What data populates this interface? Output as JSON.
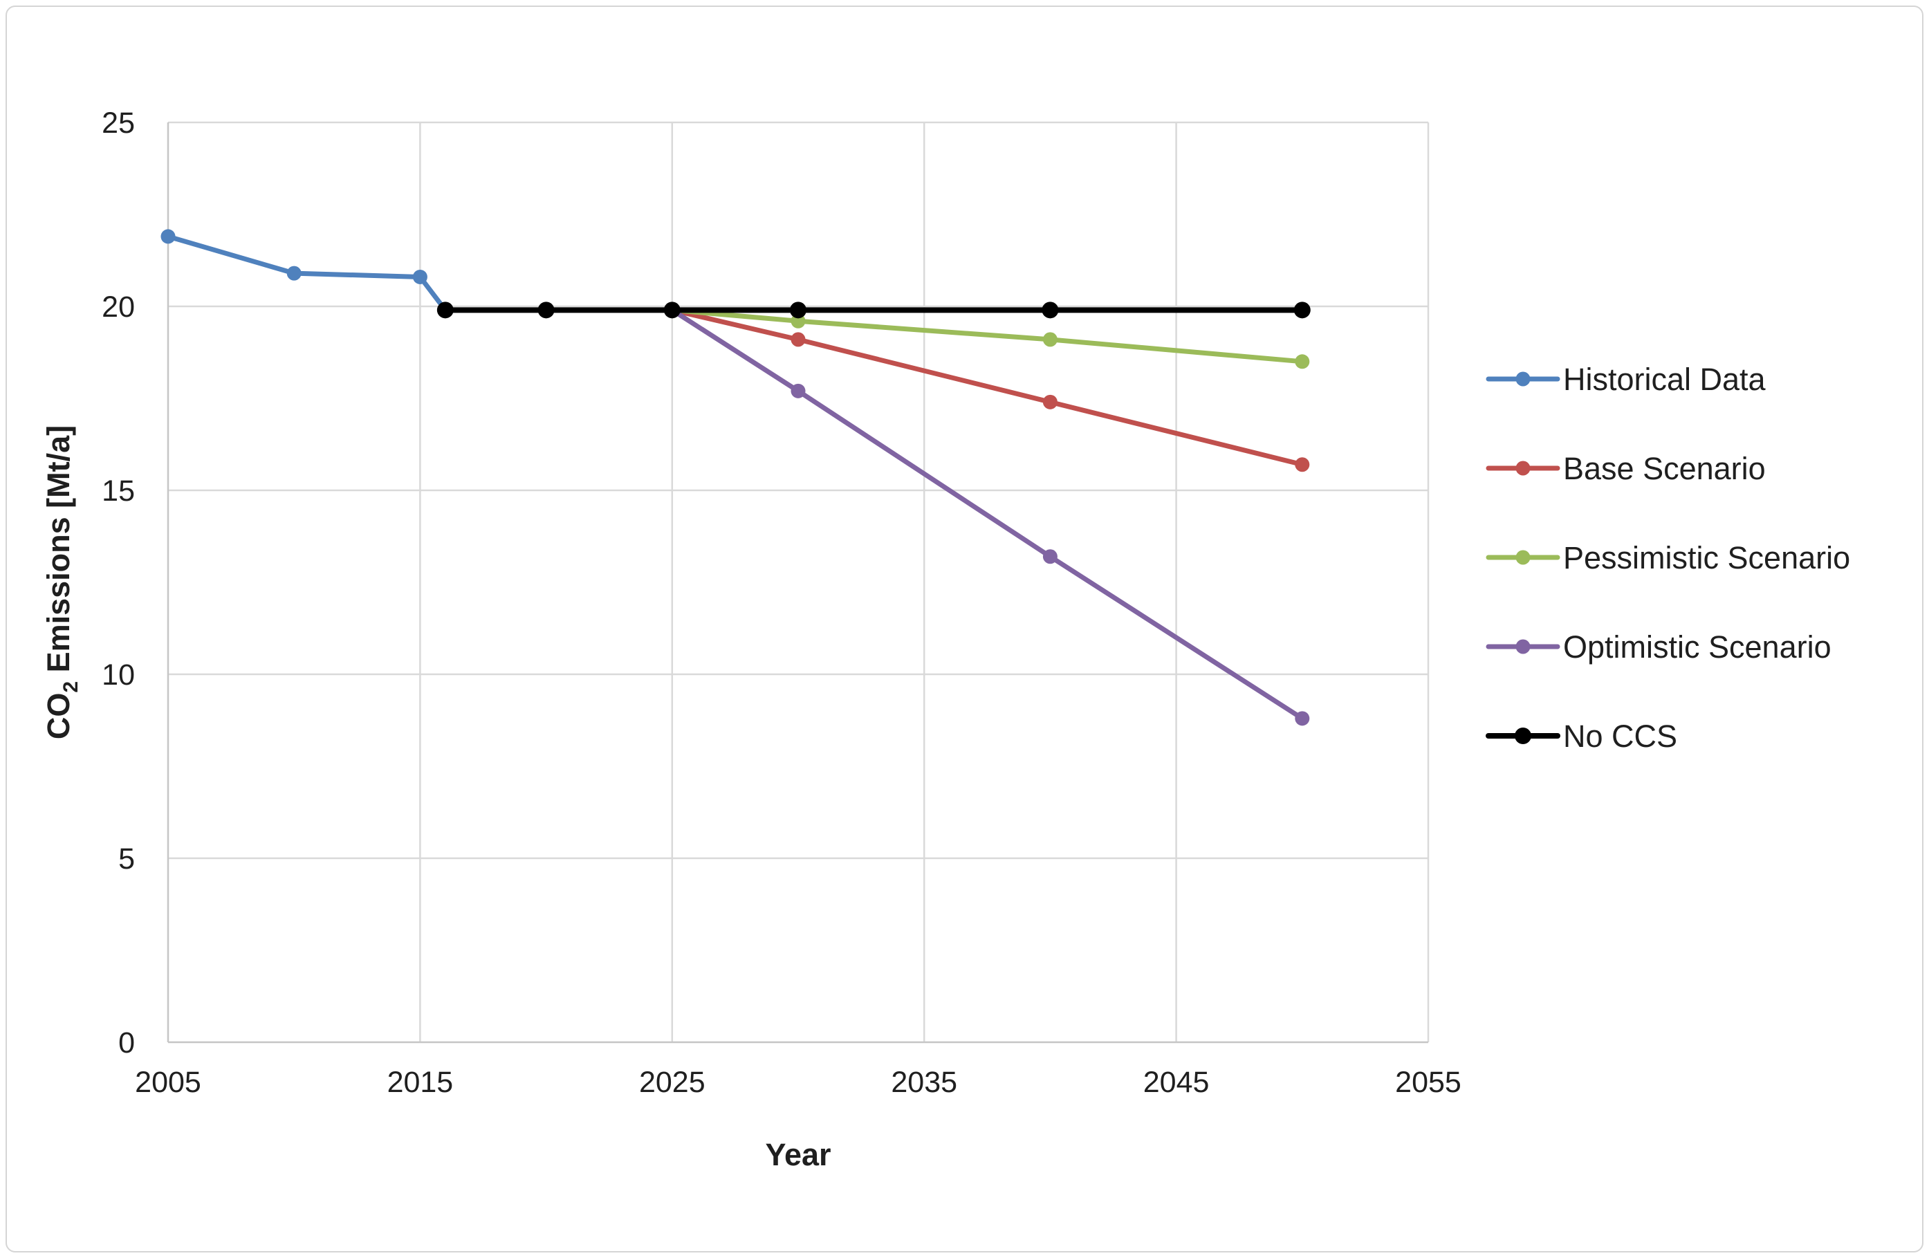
{
  "frame": {
    "background_color": "#ffffff",
    "border_color": "#d5d5d5"
  },
  "chart_data": {
    "type": "line",
    "title": "",
    "xlabel": "Year",
    "ylabel": "CO2 Emissions [Mt/a]",
    "ylabel_rich": {
      "prefix": "CO",
      "subscript": "2",
      "suffix": " Emissions [Mt/a]"
    },
    "xlim": [
      2005,
      2055
    ],
    "ylim": [
      0,
      25
    ],
    "xticks": [
      2005,
      2015,
      2025,
      2035,
      2045,
      2055
    ],
    "yticks": [
      0,
      5,
      10,
      15,
      20,
      25
    ],
    "grid": true,
    "gridline_color": "#d9d9d9",
    "axis_line_color": "#c6c6c6",
    "legend_position": "right",
    "series": [
      {
        "name": "Historical Data",
        "color": "#4F81BD",
        "line_width": 7,
        "marker_radius": 10.5,
        "points": [
          [
            2005,
            21.9
          ],
          [
            2010,
            20.9
          ],
          [
            2015,
            20.8
          ],
          [
            2016,
            19.9
          ]
        ]
      },
      {
        "name": "Base Scenario",
        "color": "#C0504D",
        "line_width": 7,
        "marker_radius": 10.5,
        "points": [
          [
            2025,
            19.9
          ],
          [
            2030,
            19.1
          ],
          [
            2040,
            17.4
          ],
          [
            2050,
            15.7
          ]
        ]
      },
      {
        "name": "Pessimistic Scenario",
        "color": "#9BBB59",
        "line_width": 7,
        "marker_radius": 10.5,
        "points": [
          [
            2025,
            19.9
          ],
          [
            2030,
            19.6
          ],
          [
            2040,
            19.1
          ],
          [
            2050,
            18.5
          ]
        ]
      },
      {
        "name": "Optimistic Scenario",
        "color": "#8064A2",
        "line_width": 7,
        "marker_radius": 10.5,
        "points": [
          [
            2025,
            19.9
          ],
          [
            2030,
            17.7
          ],
          [
            2040,
            13.2
          ],
          [
            2050,
            8.8
          ]
        ]
      },
      {
        "name": "No CCS",
        "color": "#000000",
        "line_width": 8,
        "marker_radius": 12,
        "points": [
          [
            2016,
            19.9
          ],
          [
            2020,
            19.9
          ],
          [
            2025,
            19.9
          ],
          [
            2030,
            19.9
          ],
          [
            2040,
            19.9
          ],
          [
            2050,
            19.9
          ]
        ]
      }
    ]
  }
}
